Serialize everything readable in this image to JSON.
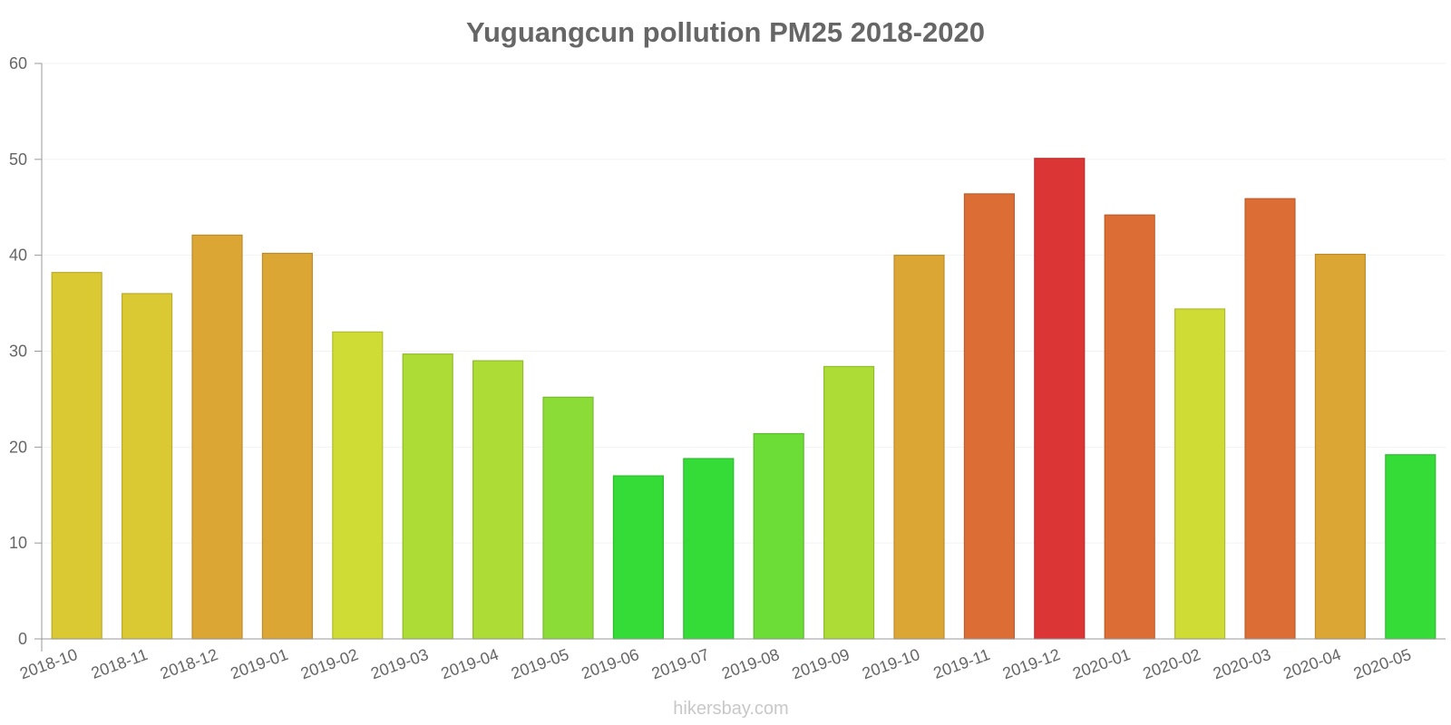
{
  "chart_data": {
    "type": "bar",
    "title": "Yuguangcun pollution PM25 2018-2020",
    "categories": [
      "2018-10",
      "2018-11",
      "2018-12",
      "2019-01",
      "2019-02",
      "2019-03",
      "2019-04",
      "2019-05",
      "2019-06",
      "2019-07",
      "2019-08",
      "2019-09",
      "2019-10",
      "2019-11",
      "2019-12",
      "2020-01",
      "2020-02",
      "2020-03",
      "2020-04",
      "2020-05"
    ],
    "values": [
      38.2,
      36.0,
      42.1,
      40.2,
      32.0,
      29.7,
      29.0,
      25.2,
      17.0,
      18.8,
      21.4,
      28.4,
      40.0,
      46.4,
      50.1,
      44.2,
      34.4,
      45.9,
      40.1,
      19.2
    ],
    "colors": [
      "#dbc934",
      "#dbc934",
      "#dca635",
      "#dca635",
      "#cfdc36",
      "#acdc35",
      "#acdc35",
      "#8bdc37",
      "#35dc38",
      "#35dc38",
      "#6cdc37",
      "#acdc35",
      "#dca635",
      "#dc6e35",
      "#db3535",
      "#dc6e35",
      "#cfdc36",
      "#dc6e35",
      "#dca635",
      "#35dc38"
    ],
    "yticks": [
      0,
      10,
      20,
      30,
      40,
      50,
      60
    ],
    "ylim": [
      0,
      60
    ],
    "xlabel": "",
    "ylabel": "",
    "grid": true
  },
  "watermark": "hikersbay.com"
}
